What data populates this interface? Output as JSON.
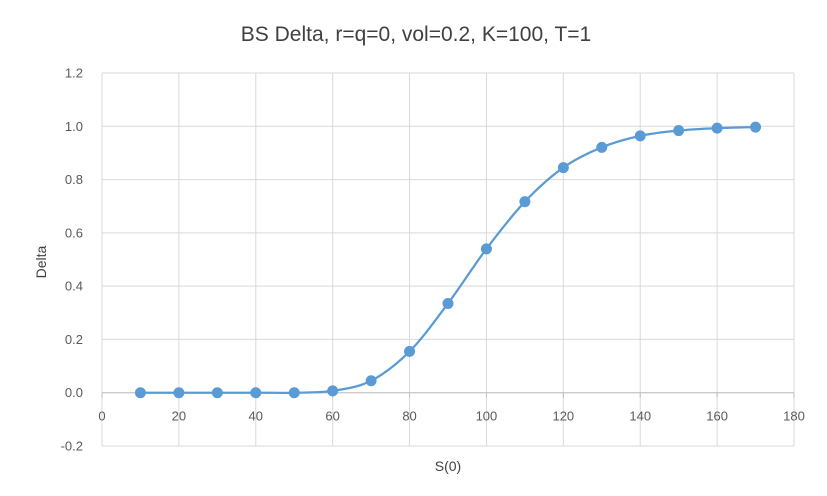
{
  "chart_data": {
    "type": "scatter",
    "title": "BS Delta, r=q=0, vol=0.2, K=100, T=1",
    "xlabel": "S(0)",
    "ylabel": "Delta",
    "xlim": [
      0,
      180
    ],
    "ylim": [
      -0.2,
      1.2
    ],
    "x_ticks": [
      0,
      20,
      40,
      60,
      80,
      100,
      120,
      140,
      160,
      180
    ],
    "y_ticks": [
      -0.2,
      0.0,
      0.2,
      0.4,
      0.6,
      0.8,
      1.0,
      1.2
    ],
    "x_tick_labels": [
      "0",
      "20",
      "40",
      "60",
      "80",
      "100",
      "120",
      "140",
      "160",
      "180"
    ],
    "y_tick_labels": [
      "-0.2",
      "0.0",
      "0.2",
      "0.4",
      "0.6",
      "0.8",
      "1.0",
      "1.2"
    ],
    "grid": "on",
    "legend": "none",
    "smooth_line": true,
    "series": [
      {
        "color": "#5b9bd5",
        "x": [
          10,
          20,
          30,
          40,
          50,
          60,
          70,
          80,
          90,
          100,
          110,
          120,
          130,
          140,
          150,
          160,
          170
        ],
        "y": [
          0.0,
          0.0,
          0.0,
          0.0,
          0.0,
          0.007,
          0.045,
          0.155,
          0.335,
          0.54,
          0.717,
          0.845,
          0.921,
          0.964,
          0.984,
          0.993,
          0.997
        ]
      }
    ]
  }
}
